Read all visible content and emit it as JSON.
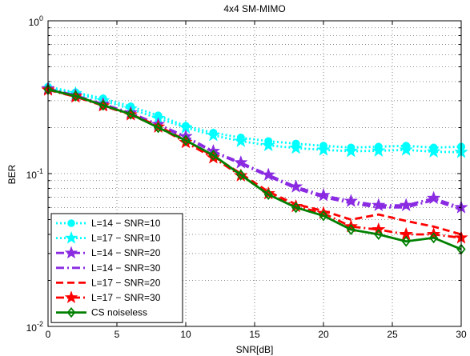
{
  "chart_data": {
    "type": "line",
    "title": "4x4 SM-MIMO",
    "xlabel": "SNR[dB]",
    "ylabel": "BER",
    "xlim": [
      0,
      30
    ],
    "ylim": [
      0.01,
      1
    ],
    "yscale": "log",
    "grid": true,
    "legend_position": "bottom-left",
    "x_ticks": [
      "0",
      "5",
      "10",
      "15",
      "20",
      "25",
      "30"
    ],
    "y_ticks": [
      {
        "base": "10",
        "exp": "-2"
      },
      {
        "base": "10",
        "exp": "-1"
      },
      {
        "base": "10",
        "exp": "0"
      }
    ],
    "x": [
      0,
      2,
      4,
      6,
      8,
      10,
      12,
      14,
      16,
      18,
      20,
      22,
      24,
      26,
      28,
      30
    ],
    "series": [
      {
        "name": "L=14 − SNR=10",
        "color": "#00ffff",
        "line": "dotted",
        "marker": "circle",
        "values": [
          0.37,
          0.34,
          0.31,
          0.275,
          0.24,
          0.205,
          0.185,
          0.172,
          0.163,
          0.157,
          0.152,
          0.148,
          0.15,
          0.152,
          0.148,
          0.15
        ]
      },
      {
        "name": "L=17 − SNR=10",
        "color": "#00ffff",
        "line": "dotted",
        "marker": "star",
        "values": [
          0.36,
          0.335,
          0.3,
          0.265,
          0.23,
          0.2,
          0.178,
          0.163,
          0.153,
          0.147,
          0.143,
          0.14,
          0.141,
          0.143,
          0.139,
          0.138
        ]
      },
      {
        "name": "L=14 − SNR=20",
        "color": "#8a2be2",
        "line": "dashdot",
        "marker": "star",
        "values": [
          0.36,
          0.325,
          0.285,
          0.25,
          0.21,
          0.175,
          0.14,
          0.118,
          0.098,
          0.082,
          0.072,
          0.066,
          0.062,
          0.062,
          0.069,
          0.06
        ]
      },
      {
        "name": "L=14 − SNR=30",
        "color": "#8a2be2",
        "line": "dashdot",
        "marker": "none",
        "values": [
          0.36,
          0.323,
          0.283,
          0.248,
          0.208,
          0.172,
          0.138,
          0.116,
          0.096,
          0.08,
          0.07,
          0.064,
          0.06,
          0.06,
          0.067,
          0.058
        ]
      },
      {
        "name": "L=17 − SNR=20",
        "color": "#ff0000",
        "line": "dashed",
        "marker": "none",
        "values": [
          0.355,
          0.32,
          0.28,
          0.245,
          0.205,
          0.165,
          0.13,
          0.1,
          0.076,
          0.063,
          0.057,
          0.05,
          0.054,
          0.049,
          0.045,
          0.04
        ]
      },
      {
        "name": "L=17 − SNR=30",
        "color": "#ff0000",
        "line": "dashdot",
        "marker": "star",
        "values": [
          0.353,
          0.318,
          0.278,
          0.243,
          0.202,
          0.16,
          0.127,
          0.097,
          0.074,
          0.061,
          0.055,
          0.045,
          0.043,
          0.04,
          0.04,
          0.038
        ]
      },
      {
        "name": "CS noiseless",
        "color": "#008000",
        "line": "solid",
        "marker": "diamond",
        "values": [
          0.355,
          0.322,
          0.28,
          0.245,
          0.2,
          0.165,
          0.132,
          0.098,
          0.073,
          0.06,
          0.053,
          0.043,
          0.04,
          0.036,
          0.038,
          0.032
        ]
      }
    ]
  }
}
